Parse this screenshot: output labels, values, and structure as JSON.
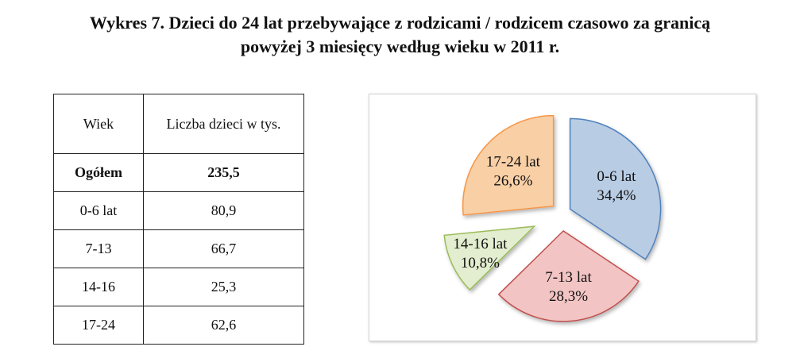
{
  "title": {
    "line1": "Wykres 7. Dzieci do 24 lat przebywające z rodzicami / rodzicem czasowo za granicą",
    "line2": "powyżej 3 miesięcy według wieku w 2011 r."
  },
  "table": {
    "headers": [
      "Wiek",
      "Liczba dzieci  w tys."
    ],
    "total": {
      "label": "Ogółem",
      "value": "235,5"
    },
    "rows": [
      {
        "age": "0-6 lat",
        "value": "80,9"
      },
      {
        "age": "7-13",
        "value": "66,7"
      },
      {
        "age": "14-16",
        "value": "25,3"
      },
      {
        "age": "17-24",
        "value": "62,6"
      }
    ]
  },
  "chart_data": {
    "type": "pie",
    "title": "",
    "exploded": true,
    "slices": [
      {
        "name": "0-6 lat",
        "value": 34.4,
        "label": "34,4%",
        "color": "#b8cce4"
      },
      {
        "name": "7-13 lat",
        "value": 28.3,
        "label": "28,3%",
        "color": "#f2c4c4"
      },
      {
        "name": "14-16 lat",
        "value": 10.8,
        "label": "10,8%",
        "color": "#e2eecf"
      },
      {
        "name": "17-24 lat",
        "value": 26.6,
        "label": "26,6%",
        "color": "#f9cfa6"
      }
    ],
    "stroke_colors": [
      "#4f81bd",
      "#c0504d",
      "#9bbb59",
      "#f79646"
    ]
  }
}
